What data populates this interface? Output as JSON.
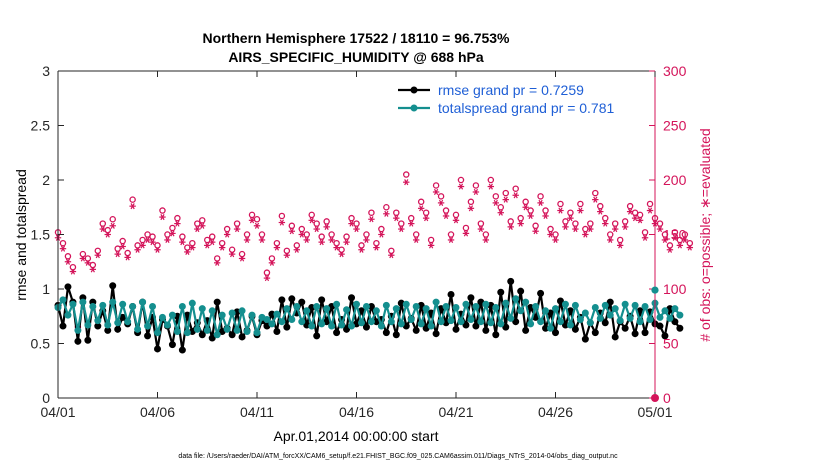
{
  "chart_data": {
    "type": "line",
    "title_line1": "Northern Hemisphere 17522 / 18110 = 96.753%",
    "title_line2": "AIRS_SPECIFIC_HUMIDITY @ 688 hPa",
    "xlabel": "Apr.01,2014 00:00:00 start",
    "ylabel": "rmse and totalspread",
    "y2label": "# of obs: o=possible; ∗=evaluated",
    "footnote": "data file: /Users/raeder/DAI/ATM_forcXX/CAM6_setup/f.e21.FHIST_BGC.f09_025.CAM6assim.011/Diags_NTrS_2014-04/obs_diag_output.nc",
    "x_tick_labels": [
      "04/01",
      "04/06",
      "04/11",
      "04/16",
      "04/21",
      "04/26",
      "05/01"
    ],
    "x_tick_values": [
      0,
      5,
      10,
      15,
      20,
      25,
      30
    ],
    "xlim": [
      0,
      30
    ],
    "ylim": [
      0,
      3
    ],
    "y_ticks": [
      "0",
      "0.5",
      "1",
      "1.5",
      "2",
      "2.5",
      "3"
    ],
    "y2lim": [
      0,
      300
    ],
    "y2_ticks": [
      "0",
      "50",
      "100",
      "150",
      "200",
      "250",
      "300"
    ],
    "colors": {
      "rmse": "#000000",
      "totalspread": "#148f8f",
      "obs_count": "#d4145a",
      "legend_text": "#1f5fd6"
    },
    "legend": [
      {
        "label": "rmse grand pr = 0.7259",
        "color": "#000000"
      },
      {
        "label": "totalspread grand pr = 0.781",
        "color": "#148f8f"
      }
    ],
    "series": [
      {
        "name": "rmse",
        "axis": "left",
        "x_start": 0,
        "x_step": 0.25,
        "values": [
          0.85,
          0.66,
          1.02,
          0.88,
          0.52,
          0.92,
          0.53,
          0.88,
          0.66,
          0.8,
          0.62,
          1.03,
          0.63,
          0.74,
          0.68,
          0.84,
          0.6,
          0.88,
          0.57,
          0.74,
          0.45,
          0.72,
          0.66,
          0.49,
          0.75,
          0.44,
          0.76,
          0.61,
          0.69,
          0.58,
          0.71,
          0.55,
          0.88,
          0.61,
          0.64,
          0.58,
          0.79,
          0.56,
          0.62,
          0.75,
          0.58,
          0.71,
          0.66,
          0.77,
          0.61,
          0.9,
          0.65,
          0.91,
          0.78,
          0.88,
          0.67,
          0.83,
          0.57,
          0.9,
          0.7,
          0.84,
          0.6,
          0.72,
          0.63,
          0.92,
          0.68,
          0.8,
          0.65,
          0.84,
          0.7,
          0.72,
          0.6,
          0.75,
          0.58,
          0.87,
          0.66,
          0.73,
          0.62,
          0.85,
          0.64,
          0.78,
          0.59,
          0.82,
          0.69,
          0.95,
          0.63,
          0.77,
          0.67,
          0.92,
          0.66,
          0.88,
          0.62,
          0.85,
          0.58,
          0.97,
          0.65,
          1.07,
          0.7,
          0.98,
          0.62,
          0.83,
          0.74,
          0.96,
          0.64,
          0.78,
          0.6,
          0.89,
          0.67,
          0.8,
          0.63,
          0.74,
          0.54,
          0.69,
          0.6,
          0.78,
          0.69,
          0.88,
          0.56,
          0.7,
          0.64,
          0.75,
          0.59,
          0.8,
          0.6,
          0.79,
          0.68,
          0.66,
          0.57,
          0.82,
          0.7,
          0.64
        ]
      },
      {
        "name": "totalspread",
        "axis": "left",
        "x_start": 0,
        "x_step": 0.25,
        "values": [
          0.83,
          0.9,
          0.76,
          0.86,
          0.62,
          0.88,
          0.67,
          0.84,
          0.71,
          0.85,
          0.67,
          0.88,
          0.69,
          0.86,
          0.7,
          0.84,
          0.63,
          0.88,
          0.66,
          0.84,
          0.6,
          0.74,
          0.67,
          0.76,
          0.61,
          0.84,
          0.6,
          0.87,
          0.63,
          0.82,
          0.62,
          0.8,
          0.58,
          0.76,
          0.63,
          0.78,
          0.62,
          0.8,
          0.61,
          0.76,
          0.6,
          0.74,
          0.72,
          0.68,
          0.77,
          0.7,
          0.82,
          0.72,
          0.84,
          0.7,
          0.8,
          0.66,
          0.84,
          0.68,
          0.82,
          0.66,
          0.86,
          0.67,
          0.81,
          0.66,
          0.86,
          0.69,
          0.84,
          0.7,
          0.8,
          0.66,
          0.85,
          0.7,
          0.82,
          0.68,
          0.86,
          0.72,
          0.84,
          0.68,
          0.82,
          0.66,
          0.88,
          0.7,
          0.84,
          0.71,
          0.83,
          0.7,
          0.86,
          0.72,
          0.84,
          0.7,
          0.86,
          0.69,
          0.83,
          0.68,
          0.87,
          0.73,
          0.91,
          0.8,
          0.88,
          0.68,
          0.84,
          0.7,
          0.8,
          0.64,
          0.82,
          0.7,
          0.86,
          0.67,
          0.85,
          0.72,
          0.78,
          0.69,
          0.83,
          0.73,
          0.85,
          0.76,
          0.82,
          0.71,
          0.86,
          0.73,
          0.85,
          0.7,
          0.84,
          0.72,
          0.87,
          0.74,
          0.8,
          0.73,
          0.82,
          0.76
        ]
      },
      {
        "name": "obs_possible",
        "axis": "right",
        "x_start": 0,
        "x_step": 0.25,
        "marker": "o",
        "values": [
          152,
          142,
          130,
          120,
          65,
          132,
          128,
          122,
          135,
          160,
          154,
          164,
          137,
          144,
          133,
          182,
          140,
          145,
          150,
          148,
          140,
          172,
          150,
          156,
          165,
          148,
          138,
          142,
          160,
          163,
          145,
          148,
          128,
          142,
          155,
          136,
          160,
          132,
          150,
          168,
          164,
          150,
          115,
          128,
          142,
          167,
          135,
          158,
          140,
          155,
          150,
          168,
          160,
          148,
          162,
          150,
          142,
          136,
          148,
          165,
          160,
          140,
          150,
          170,
          142,
          155,
          175,
          135,
          170,
          160,
          205,
          165,
          150,
          180,
          170,
          145,
          195,
          185,
          172,
          150,
          168,
          200,
          156,
          180,
          195,
          160,
          150,
          200,
          185,
          175,
          188,
          162,
          192,
          165,
          180,
          172,
          158,
          185,
          172,
          155,
          150,
          178,
          162,
          170,
          160,
          178,
          155,
          160,
          188,
          176,
          165,
          150,
          160,
          145,
          162,
          176,
          170,
          168,
          152,
          178,
          165,
          160,
          150,
          140,
          152,
          145,
          150,
          142
        ]
      },
      {
        "name": "obs_evaluated",
        "axis": "right",
        "x_start": 0,
        "x_step": 0.25,
        "marker": "*",
        "values": [
          147,
          137,
          125,
          116,
          63,
          128,
          124,
          118,
          131,
          155,
          150,
          158,
          132,
          139,
          129,
          176,
          136,
          140,
          145,
          143,
          136,
          166,
          145,
          151,
          160,
          143,
          134,
          138,
          155,
          158,
          140,
          143,
          124,
          138,
          150,
          132,
          155,
          128,
          145,
          163,
          158,
          145,
          110,
          124,
          138,
          161,
          131,
          153,
          136,
          150,
          145,
          163,
          155,
          143,
          157,
          145,
          138,
          132,
          143,
          160,
          155,
          136,
          145,
          164,
          138,
          150,
          169,
          131,
          165,
          155,
          198,
          160,
          145,
          174,
          165,
          140,
          189,
          179,
          167,
          145,
          163,
          194,
          151,
          174,
          189,
          155,
          145,
          194,
          179,
          170,
          182,
          157,
          186,
          160,
          175,
          167,
          153,
          179,
          167,
          150,
          145,
          172,
          157,
          165,
          155,
          172,
          150,
          155,
          182,
          171,
          160,
          145,
          155,
          140,
          157,
          171,
          165,
          163,
          147,
          172,
          160,
          155,
          145,
          136,
          147,
          140,
          145,
          138
        ]
      }
    ]
  }
}
